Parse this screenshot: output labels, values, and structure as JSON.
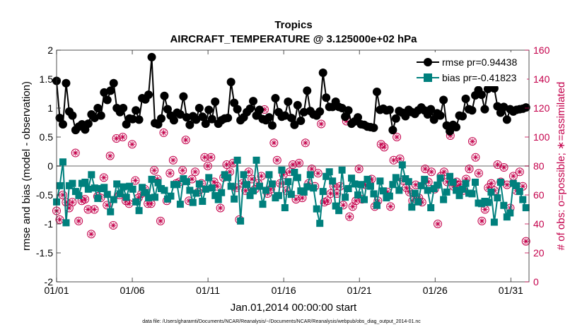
{
  "chart_data": {
    "type": "line",
    "title": "Tropics",
    "subtitle": "AIRCRAFT_TEMPERATURE @ 3.125000e+02 hPa",
    "xlabel": "Jan.01,2014 00:00:00 start",
    "ylabel": "rmse and bias (model - observation)",
    "y2label": "# of obs: o=possible; ∗=assimilated",
    "footnote": "data file: /Users/gharamti/Documents/NCAR/Reanalysis/~/Documents/NCAR/Reanalysis/webpub/obs_diag_output_2014-01.nc",
    "xlim": [
      1,
      32.2
    ],
    "ylim": [
      -2,
      2
    ],
    "y2lim": [
      0,
      160
    ],
    "xticks": [
      1,
      6,
      11,
      16,
      21,
      26,
      31
    ],
    "xtick_labels": [
      "01/01",
      "01/06",
      "01/11",
      "01/16",
      "01/21",
      "01/26",
      "01/31"
    ],
    "yticks": [
      -2,
      -1.5,
      -1,
      -0.5,
      0,
      0.5,
      1,
      1.5,
      2
    ],
    "ytick_labels": [
      "-2",
      "-1.5",
      "-1",
      "-0.5",
      "0",
      "0.5",
      "1",
      "1.5",
      "2"
    ],
    "y2ticks": [
      0,
      20,
      40,
      60,
      80,
      100,
      120,
      140,
      160
    ],
    "y2tick_labels": [
      "0",
      "20",
      "40",
      "60",
      "80",
      "100",
      "120",
      "140",
      "160"
    ],
    "zero_line": 0,
    "series": [
      {
        "name": "rmse pr=0.94438",
        "axis": "left",
        "color": "#000000",
        "marker": "circle",
        "values": [
          1.47,
          0.83,
          0.72,
          1.43,
          0.94,
          0.87,
          0.62,
          0.68,
          0.72,
          0.63,
          0.73,
          0.89,
          0.83,
          1.0,
          0.87,
          1.27,
          1.14,
          1.3,
          1.43,
          1.0,
          0.93,
          1.0,
          0.72,
          0.82,
          0.81,
          0.96,
          0.8,
          1.17,
          1.15,
          1.23,
          1.88,
          0.74,
          0.72,
          0.82,
          1.21,
          0.98,
          0.87,
          0.79,
          0.92,
          0.89,
          1.2,
          0.84,
          0.71,
          0.86,
          0.8,
          1.0,
          0.85,
          0.73,
          0.97,
          0.81,
          1.11,
          0.73,
          0.79,
          0.82,
          0.83,
          1.45,
          1.09,
          0.98,
          0.79,
          0.84,
          0.93,
          0.99,
          1.12,
          0.87,
          0.97,
          0.81,
          0.79,
          0.84,
          0.7,
          1.17,
          0.93,
          0.85,
          0.87,
          1.11,
          0.83,
          0.71,
          1.05,
          0.78,
          0.93,
          1.3,
          0.95,
          0.89,
          0.87,
          0.94,
          1.61,
          1.18,
          1.02,
          1.02,
          1.11,
          1.02,
          1.0,
          0.85,
          0.96,
          0.73,
          0.77,
          0.84,
          0.72,
          0.71,
          0.68,
          0.67,
          0.66,
          1.28,
          0.97,
          0.99,
          0.96,
          0.97,
          0.62,
          0.82,
          0.95,
          0.92,
          0.86,
          0.97,
          0.93,
          0.9,
          0.96,
          1.01,
          0.96,
          0.89,
          0.98,
          0.8,
          0.91,
          0.87,
          1.14,
          0.7,
          0.6,
          0.71,
          0.67,
          0.87,
          0.86,
          1.16,
          0.98,
          0.96,
          1.22,
          1.31,
          1.23,
          0.98,
          1.33,
          1.39,
          1.34,
          1.03,
          0.92,
          1.02,
          0.8,
          0.98,
          0.94,
          0.97,
          0.98,
          0.99,
          1.01
        ]
      },
      {
        "name": "bias pr=-0.41823",
        "axis": "left",
        "color": "#00807d",
        "marker": "square",
        "values": [
          -0.62,
          -0.34,
          0.07,
          -0.98,
          -0.34,
          -0.3,
          -0.44,
          -0.51,
          -0.3,
          -0.28,
          -0.4,
          -0.15,
          -0.38,
          -0.56,
          -0.39,
          -0.37,
          -0.49,
          -0.79,
          -0.58,
          -0.31,
          -0.48,
          -0.36,
          -0.54,
          -0.35,
          -0.4,
          -0.62,
          -0.77,
          -0.37,
          -0.46,
          -0.55,
          -0.23,
          -0.54,
          -0.29,
          -0.39,
          -0.42,
          -0.57,
          -0.52,
          -0.32,
          -0.32,
          -0.66,
          -0.22,
          -0.27,
          -0.42,
          -0.63,
          -0.47,
          -0.31,
          -0.61,
          -0.4,
          -0.2,
          -0.38,
          -0.51,
          -0.58,
          -0.46,
          -0.15,
          -0.2,
          -0.35,
          -0.57,
          0.1,
          -0.95,
          -0.15,
          -0.32,
          -0.51,
          -0.43,
          0.1,
          -0.35,
          -0.66,
          -0.42,
          -0.15,
          -0.31,
          -0.55,
          -0.51,
          -0.07,
          -0.72,
          -0.27,
          -0.49,
          -0.11,
          -0.2,
          -0.43,
          -0.45,
          -0.36,
          -0.15,
          -0.38,
          -0.74,
          -0.99,
          -0.44,
          -0.18,
          -0.1,
          -0.26,
          -0.69,
          -0.77,
          -0.07,
          -0.54,
          -0.39,
          -0.21,
          -0.31,
          -0.5,
          -0.32,
          -0.58,
          -0.23,
          -0.35,
          -0.48,
          -0.68,
          -0.26,
          -0.43,
          -0.55,
          -0.52,
          -0.32,
          -0.2,
          -0.42,
          0.02,
          -0.22,
          -0.27,
          -0.71,
          -0.47,
          -0.62,
          -0.34,
          -0.23,
          -0.42,
          -0.72,
          -0.39,
          -0.33,
          -0.21,
          -0.58,
          -0.45,
          -0.18,
          -0.28,
          -0.42,
          -0.51,
          -0.4,
          -0.3,
          -0.47,
          -0.48,
          -0.28,
          -0.64,
          -0.65,
          -0.61,
          -0.63,
          -0.45,
          -0.97,
          -0.55,
          -0.28,
          -0.68,
          -0.88,
          -0.81,
          -0.3,
          -0.34,
          -0.44,
          -0.58,
          -0.72
        ]
      },
      {
        "name": "# of obs possible",
        "axis": "right",
        "color": "#c4004b",
        "marker": "circle-open",
        "values": [
          49,
          43,
          60,
          55,
          51,
          55,
          89,
          42,
          56,
          57,
          50,
          33,
          50,
          59,
          58,
          72,
          53,
          87,
          39,
          99,
          60,
          100,
          56,
          54,
          95,
          70,
          58,
          61,
          64,
          54,
          54,
          77,
          71,
          42,
          103,
          56,
          75,
          84,
          68,
          69,
          77,
          98,
          56,
          71,
          76,
          62,
          68,
          86,
          80,
          86,
          69,
          66,
          51,
          72,
          81,
          76,
          82,
          65,
          43,
          68,
          63,
          76,
          71,
          64,
          68,
          73,
          119,
          61,
          64,
          96,
          84,
          68,
          74,
          63,
          76,
          81,
          57,
          82,
          58,
          96,
          68,
          78,
          66,
          75,
          109,
          55,
          56,
          61,
          66,
          61,
          66,
          53,
          111,
          45,
          52,
          56,
          78,
          57,
          67,
          69,
          71,
          52,
          56,
          95,
          93,
          62,
          52,
          84,
          100,
          85,
          70,
          65,
          62,
          56,
          67,
          58,
          55,
          78,
          69,
          76,
          64,
          40,
          73,
          76,
          69,
          101,
          66,
          69,
          67,
          63,
          71,
          78,
          97,
          86,
          75,
          42,
          50,
          65,
          68,
          63,
          81,
          69,
          79,
          67,
          51,
          73,
          63,
          76,
          66,
          28
        ]
      },
      {
        "name": "# of obs assimilated",
        "axis": "right",
        "color": "#c4004b",
        "marker": "asterisk",
        "values": [
          49,
          43,
          60,
          55,
          51,
          55,
          89,
          42,
          56,
          57,
          50,
          33,
          50,
          59,
          58,
          72,
          53,
          87,
          39,
          99,
          60,
          100,
          56,
          54,
          95,
          70,
          58,
          61,
          64,
          54,
          54,
          77,
          71,
          42,
          103,
          56,
          75,
          84,
          68,
          69,
          77,
          98,
          56,
          71,
          76,
          62,
          68,
          86,
          80,
          86,
          69,
          66,
          51,
          72,
          81,
          76,
          82,
          65,
          43,
          68,
          63,
          76,
          71,
          64,
          68,
          73,
          119,
          61,
          64,
          96,
          84,
          68,
          74,
          63,
          76,
          81,
          57,
          82,
          58,
          96,
          68,
          78,
          66,
          75,
          109,
          55,
          56,
          61,
          66,
          61,
          66,
          53,
          111,
          45,
          52,
          56,
          78,
          57,
          67,
          69,
          71,
          52,
          56,
          95,
          93,
          62,
          52,
          84,
          100,
          85,
          70,
          65,
          62,
          56,
          67,
          58,
          55,
          78,
          69,
          76,
          64,
          40,
          73,
          76,
          69,
          101,
          66,
          69,
          67,
          63,
          71,
          78,
          97,
          86,
          75,
          42,
          50,
          65,
          68,
          63,
          81,
          69,
          79,
          67,
          51,
          73,
          63,
          76,
          66,
          28
        ]
      }
    ],
    "legend": [
      "rmse pr=0.94438",
      "bias pr=-0.41823"
    ],
    "legend_position": "top-right"
  }
}
